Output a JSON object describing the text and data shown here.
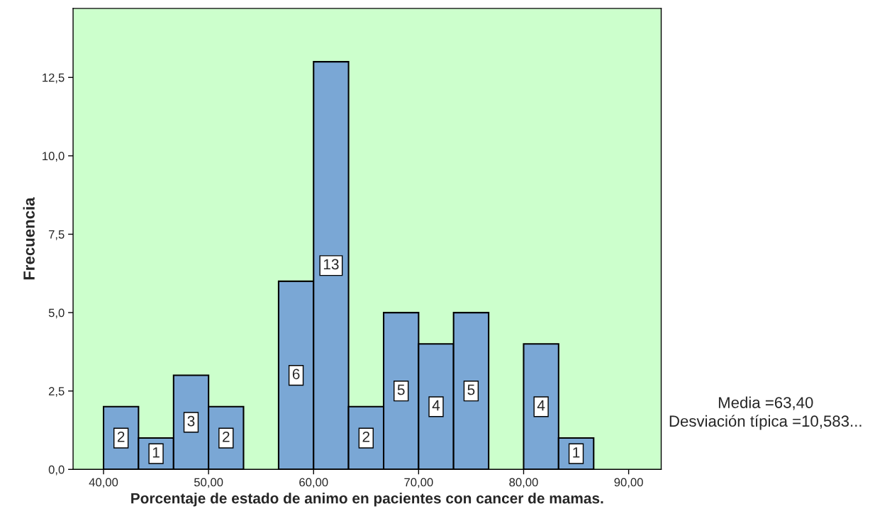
{
  "chart_data": {
    "type": "histogram",
    "xlabel": "Porcentaje de estado de animo en pacientes con cancer de mamas.",
    "ylabel": "Frecuencia",
    "bins": [
      40,
      43.33,
      46.67,
      50,
      53.33,
      56.67,
      60,
      63.33,
      66.67,
      70,
      73.33,
      76.67,
      80,
      83.33,
      86.67
    ],
    "values": [
      2,
      1,
      3,
      2,
      0,
      6,
      13,
      2,
      5,
      4,
      5,
      0,
      4,
      1
    ],
    "value_labels": [
      "2",
      "1",
      "3",
      "2",
      null,
      "6",
      "13",
      "2",
      "5",
      "4",
      "5",
      null,
      "4",
      "1"
    ],
    "color": "#7aa7d5",
    "xlim": [
      37.1,
      93.1
    ],
    "xticks": [
      {
        "value": 40,
        "label": "40,00"
      },
      {
        "value": 50,
        "label": "50,00"
      },
      {
        "value": 60,
        "label": "60,00"
      },
      {
        "value": 70,
        "label": "70,00"
      },
      {
        "value": 80,
        "label": "80,00"
      },
      {
        "value": 90,
        "label": "90,00"
      }
    ],
    "ylim": [
      0,
      14.7
    ],
    "yticks": [
      {
        "value": 0,
        "label": "0,0"
      },
      {
        "value": 2.5,
        "label": "2,5"
      },
      {
        "value": 5,
        "label": "5,0"
      },
      {
        "value": 7.5,
        "label": "7,5"
      },
      {
        "value": 10,
        "label": "10,0"
      },
      {
        "value": 12.5,
        "label": "12,5"
      }
    ],
    "grid": false,
    "legend": false,
    "annotations": [
      "Media =63,40",
      "Desviación típica =10,583..."
    ]
  }
}
